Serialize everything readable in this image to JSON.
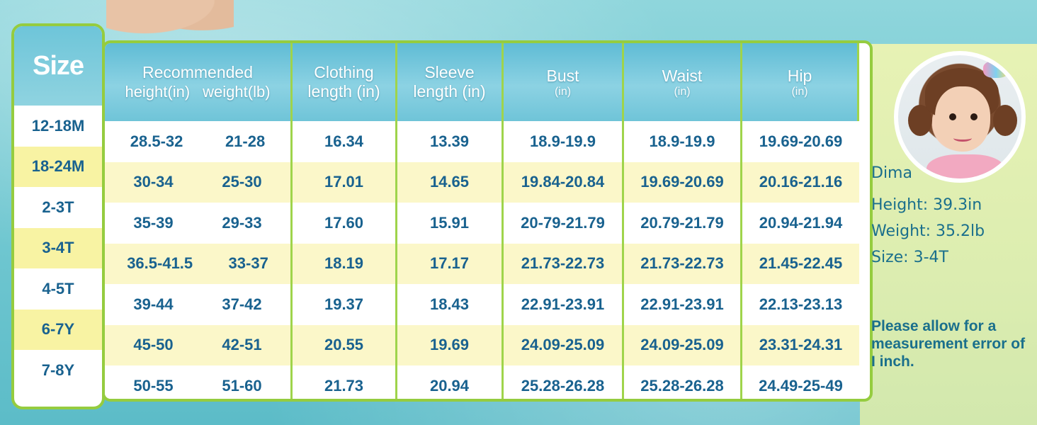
{
  "size_header": "Size",
  "headers": {
    "recommended": "Recommended",
    "height": "height(in)",
    "weight": "weight(lb)",
    "clothing_1": "Clothing",
    "clothing_2": "length (in)",
    "sleeve_1": "Sleeve",
    "sleeve_2": "length (in)",
    "bust": "Bust",
    "bust_unit": "(in)",
    "waist": "Waist",
    "waist_unit": "(in)",
    "hip": "Hip",
    "hip_unit": "(in)"
  },
  "rows": [
    {
      "size": "12-18M",
      "height": "28.5-32",
      "weight": "21-28",
      "clothing": "16.34",
      "sleeve": "13.39",
      "bust": "18.9-19.9",
      "waist": "18.9-19.9",
      "hip": "19.69-20.69"
    },
    {
      "size": "18-24M",
      "height": "30-34",
      "weight": "25-30",
      "clothing": "17.01",
      "sleeve": "14.65",
      "bust": "19.84-20.84",
      "waist": "19.69-20.69",
      "hip": "20.16-21.16"
    },
    {
      "size": "2-3T",
      "height": "35-39",
      "weight": "29-33",
      "clothing": "17.60",
      "sleeve": "15.91",
      "bust": "20-79-21.79",
      "waist": "20.79-21.79",
      "hip": "20.94-21.94"
    },
    {
      "size": "3-4T",
      "height": "36.5-41.5",
      "weight": "33-37",
      "clothing": "18.19",
      "sleeve": "17.17",
      "bust": "21.73-22.73",
      "waist": "21.73-22.73",
      "hip": "21.45-22.45"
    },
    {
      "size": "4-5T",
      "height": "39-44",
      "weight": "37-42",
      "clothing": "19.37",
      "sleeve": "18.43",
      "bust": "22.91-23.91",
      "waist": "22.91-23.91",
      "hip": "22.13-23.13"
    },
    {
      "size": "6-7Y",
      "height": "45-50",
      "weight": "42-51",
      "clothing": "20.55",
      "sleeve": "19.69",
      "bust": "24.09-25.09",
      "waist": "24.09-25.09",
      "hip": "23.31-24.31"
    },
    {
      "size": "7-8Y",
      "height": "50-55",
      "weight": "51-60",
      "clothing": "21.73",
      "sleeve": "20.94",
      "bust": "25.28-26.28",
      "waist": "25.28-26.28",
      "hip": "24.49-25-49"
    }
  ],
  "model": {
    "name": "Dima",
    "height": "Height: 39.3in",
    "weight": "Weight: 35.2lb",
    "size": "Size: 3-4T"
  },
  "note": "Please allow for a measurement error of I inch.",
  "colors": {
    "text": "#19628f",
    "border": "#95cc3f",
    "header": "#6ec5d9",
    "stripe": "#fbf7c9"
  }
}
